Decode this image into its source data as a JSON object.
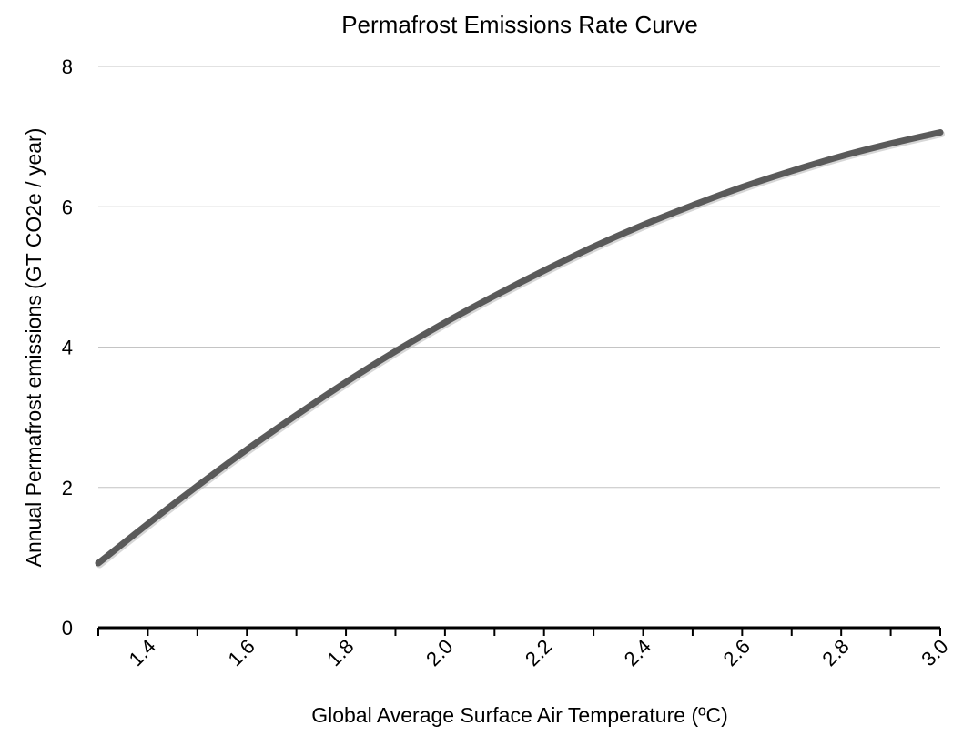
{
  "chart_data": {
    "type": "line",
    "title": "Permafrost Emissions Rate Curve",
    "xlabel": "Global Average Surface Air Temperature (ºC)",
    "ylabel": "Annual Permafrost emissions (GT CO2e / year)",
    "xlim": [
      1.3,
      3.0
    ],
    "ylim": [
      0,
      8
    ],
    "grid": true,
    "x_ticks": [
      1.3,
      1.4,
      1.5,
      1.6,
      1.7,
      1.8,
      1.9,
      2.0,
      2.1,
      2.2,
      2.3,
      2.4,
      2.5,
      2.6,
      2.7,
      2.8,
      2.9,
      3.0
    ],
    "x_tick_labels": [
      {
        "value": 1.4,
        "label": "1.4"
      },
      {
        "value": 1.6,
        "label": "1.6"
      },
      {
        "value": 1.8,
        "label": "1.8"
      },
      {
        "value": 2.0,
        "label": "2.0"
      },
      {
        "value": 2.2,
        "label": "2.2"
      },
      {
        "value": 2.4,
        "label": "2.4"
      },
      {
        "value": 2.6,
        "label": "2.6"
      },
      {
        "value": 2.8,
        "label": "2.8"
      },
      {
        "value": 3.0,
        "label": "3.0"
      }
    ],
    "y_ticks": [
      {
        "value": 0,
        "label": "0"
      },
      {
        "value": 2,
        "label": "2"
      },
      {
        "value": 4,
        "label": "4"
      },
      {
        "value": 6,
        "label": "6"
      },
      {
        "value": 8,
        "label": "8"
      }
    ],
    "series": [
      {
        "name": "Permafrost emissions",
        "color": "#5a5a5a",
        "x": [
          1.3,
          1.4,
          1.5,
          1.6,
          1.7,
          1.8,
          1.9,
          2.0,
          2.1,
          2.2,
          2.3,
          2.4,
          2.5,
          2.6,
          2.7,
          2.8,
          2.9,
          3.0
        ],
        "y": [
          0.92,
          1.48,
          2.02,
          2.54,
          3.03,
          3.5,
          3.94,
          4.35,
          4.73,
          5.09,
          5.43,
          5.74,
          6.02,
          6.28,
          6.51,
          6.72,
          6.9,
          7.06
        ]
      }
    ]
  }
}
